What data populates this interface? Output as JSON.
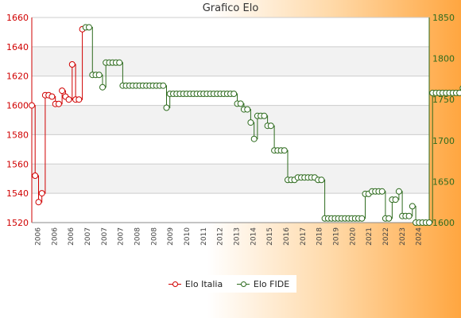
{
  "chart_data": {
    "type": "line",
    "title": "Grafico Elo",
    "grid": true,
    "legend_position": "bottom",
    "y_left": {
      "ylim": [
        1520,
        1660
      ],
      "ticks": [
        1520,
        1540,
        1560,
        1580,
        1600,
        1620,
        1640,
        1660
      ]
    },
    "y_right": {
      "ylim": [
        1600,
        1850
      ],
      "ticks": [
        1600,
        1650,
        1700,
        1750,
        1800,
        1850
      ]
    },
    "x_tick_labels": [
      "2006",
      "2006",
      "2006",
      "2007",
      "2007",
      "2007",
      "2008",
      "2008",
      "2009",
      "2010",
      "2011",
      "2012",
      "2013",
      "2014",
      "2015",
      "2016",
      "2017",
      "2018",
      "2019",
      "2020",
      "2021",
      "2022",
      "2023",
      "2024"
    ],
    "series": [
      {
        "name": "Elo Italia",
        "axis": "left",
        "color": "#d00000",
        "values": [
          1600,
          1552,
          1534,
          1540,
          1607,
          1607,
          1606,
          1601,
          1601,
          1610,
          1606,
          1604,
          1628,
          1604,
          1604,
          1652
        ]
      },
      {
        "name": "Elo FIDE",
        "axis": "right",
        "color": "#2e6b1e",
        "values": [
          1838,
          1838,
          1780,
          1780,
          1780,
          1765,
          1795,
          1795,
          1795,
          1795,
          1795,
          1767,
          1767,
          1767,
          1767,
          1767,
          1767,
          1767,
          1767,
          1767,
          1767,
          1767,
          1767,
          1767,
          1740,
          1757,
          1757,
          1757,
          1757,
          1757,
          1757,
          1757,
          1757,
          1757,
          1757,
          1757,
          1757,
          1757,
          1757,
          1757,
          1757,
          1757,
          1757,
          1757,
          1757,
          1745,
          1745,
          1738,
          1738,
          1722,
          1702,
          1730,
          1730,
          1730,
          1718,
          1718,
          1688,
          1688,
          1688,
          1688,
          1652,
          1652,
          1652,
          1655,
          1655,
          1655,
          1655,
          1655,
          1655,
          1652,
          1652,
          1605,
          1605,
          1605,
          1605,
          1605,
          1605,
          1605,
          1605,
          1605,
          1605,
          1605,
          1605,
          1635,
          1635,
          1638,
          1638,
          1638,
          1638,
          1605,
          1605,
          1628,
          1628,
          1638,
          1608,
          1608,
          1608,
          1620,
          1600,
          1600,
          1600,
          1600,
          1600,
          1758,
          1758,
          1758,
          1758,
          1758,
          1758,
          1758,
          1758,
          1758,
          1764,
          1764,
          1764,
          1764,
          1764,
          1764,
          1764
        ]
      }
    ]
  }
}
